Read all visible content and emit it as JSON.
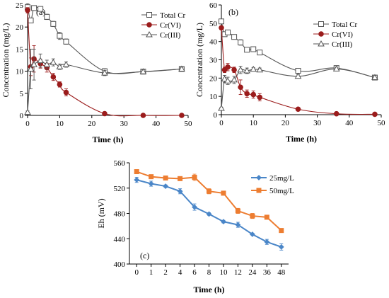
{
  "chart_data": [
    {
      "type": "line",
      "panel_label": "(a)",
      "xlabel": "Time (h)",
      "ylabel": "Concentration (mg/L)",
      "xlim": [
        0,
        50
      ],
      "ylim": [
        0,
        25
      ],
      "xticks": [
        0,
        10,
        20,
        30,
        40,
        50
      ],
      "yticks": [
        0,
        5,
        10,
        15,
        20,
        25
      ],
      "legend_position": "top-right",
      "series": [
        {
          "name": "Total Cr",
          "marker": "square-open",
          "color": "#555555",
          "x": [
            0,
            1,
            2,
            4,
            6,
            8,
            10,
            12,
            24,
            36,
            48
          ],
          "y": [
            24.5,
            21.5,
            24.3,
            24.1,
            22.3,
            20.7,
            18.0,
            16.7,
            10.0,
            9.9,
            10.5
          ],
          "err": [
            0.8,
            0.5,
            0.5,
            0.5,
            0.6,
            0.6,
            0.8,
            0.6,
            0.6,
            0.4,
            0.4
          ]
        },
        {
          "name": "Cr(VI)",
          "marker": "circle-filled",
          "color": "#9b1c1c",
          "x": [
            0,
            1,
            2,
            4,
            6,
            8,
            10,
            12,
            24,
            36,
            48
          ],
          "y": [
            23.8,
            11.0,
            12.8,
            11.7,
            10.8,
            8.7,
            7.0,
            5.2,
            0.4,
            0.0,
            0.0
          ],
          "err": [
            0.6,
            2.0,
            3.0,
            1.0,
            1.0,
            0.8,
            0.6,
            0.8,
            0.2,
            0.1,
            0.1
          ]
        },
        {
          "name": "Cr(III)",
          "marker": "triangle-open",
          "color": "#555555",
          "x": [
            0,
            1,
            2,
            4,
            6,
            8,
            10,
            12,
            24,
            36,
            48
          ],
          "y": [
            0.7,
            10.5,
            11.5,
            12.4,
            11.5,
            12.0,
            11.0,
            11.5,
            9.6,
            9.9,
            10.5
          ],
          "err": [
            0.3,
            4.5,
            3.5,
            1.5,
            1.0,
            0.8,
            0.6,
            0.6,
            0.6,
            0.4,
            0.4
          ]
        }
      ]
    },
    {
      "type": "line",
      "panel_label": "(b)",
      "xlabel": "Time (h)",
      "ylabel": "Concentration (mg/L)",
      "xlim": [
        0,
        50
      ],
      "ylim": [
        0,
        60
      ],
      "xticks": [
        0,
        10,
        20,
        30,
        40,
        50
      ],
      "yticks": [
        0,
        10,
        20,
        30,
        40,
        50,
        60
      ],
      "legend_position": "top-right",
      "series": [
        {
          "name": "Total Cr",
          "marker": "square-open",
          "color": "#555555",
          "x": [
            0,
            1,
            2,
            4,
            6,
            8,
            10,
            12,
            24,
            36,
            48
          ],
          "y": [
            51.0,
            44.0,
            45.0,
            42.5,
            39.5,
            35.5,
            35.8,
            34.0,
            24.0,
            25.5,
            20.3
          ],
          "err": [
            1.0,
            1.0,
            1.0,
            1.0,
            1.5,
            1.0,
            1.0,
            1.0,
            1.0,
            1.0,
            1.0
          ]
        },
        {
          "name": "Cr(VI)",
          "marker": "circle-filled",
          "color": "#9b1c1c",
          "x": [
            0,
            1,
            2,
            4,
            6,
            8,
            10,
            12,
            24,
            36,
            48
          ],
          "y": [
            47.5,
            24.5,
            26.0,
            24.5,
            15.0,
            11.5,
            11.0,
            9.5,
            3.0,
            0.5,
            0.2
          ],
          "err": [
            1.0,
            1.5,
            2.0,
            1.5,
            4.0,
            2.0,
            2.0,
            2.0,
            0.5,
            0.3,
            0.2
          ]
        },
        {
          "name": "Cr(III)",
          "marker": "triangle-open",
          "color": "#555555",
          "x": [
            0,
            1,
            2,
            4,
            6,
            8,
            10,
            12,
            24,
            36,
            48
          ],
          "y": [
            3.5,
            19.5,
            18.5,
            19.0,
            24.5,
            24.0,
            24.8,
            24.5,
            21.0,
            25.0,
            20.3
          ],
          "err": [
            0.5,
            2.0,
            2.0,
            2.0,
            2.0,
            1.5,
            1.0,
            1.0,
            1.0,
            1.0,
            1.0
          ]
        }
      ]
    },
    {
      "type": "line",
      "panel_label": "(c)",
      "xlabel": "Time (h)",
      "ylabel": "Eh (mV)",
      "categories": [
        "0",
        "1",
        "2",
        "4",
        "6",
        "8",
        "10",
        "12",
        "24",
        "36",
        "48"
      ],
      "ylim": [
        400,
        560
      ],
      "yticks": [
        400,
        440,
        480,
        520,
        560
      ],
      "legend_position": "top-right",
      "series": [
        {
          "name": "25mg/L",
          "marker": "diamond-filled",
          "color": "#4a86c8",
          "values": [
            533,
            527,
            523,
            515,
            490,
            479,
            467,
            462,
            447,
            435,
            427
          ],
          "err": [
            4,
            4,
            2,
            4,
            5,
            2,
            2,
            4,
            1,
            4,
            5
          ]
        },
        {
          "name": "50mg/L",
          "marker": "square-filled",
          "color": "#ed7d31",
          "values": [
            546,
            538,
            536,
            535,
            537,
            515,
            512,
            484,
            476,
            474,
            453
          ],
          "err": [
            3,
            2,
            3,
            3,
            5,
            4,
            2,
            4,
            4,
            3,
            3
          ]
        }
      ]
    }
  ]
}
